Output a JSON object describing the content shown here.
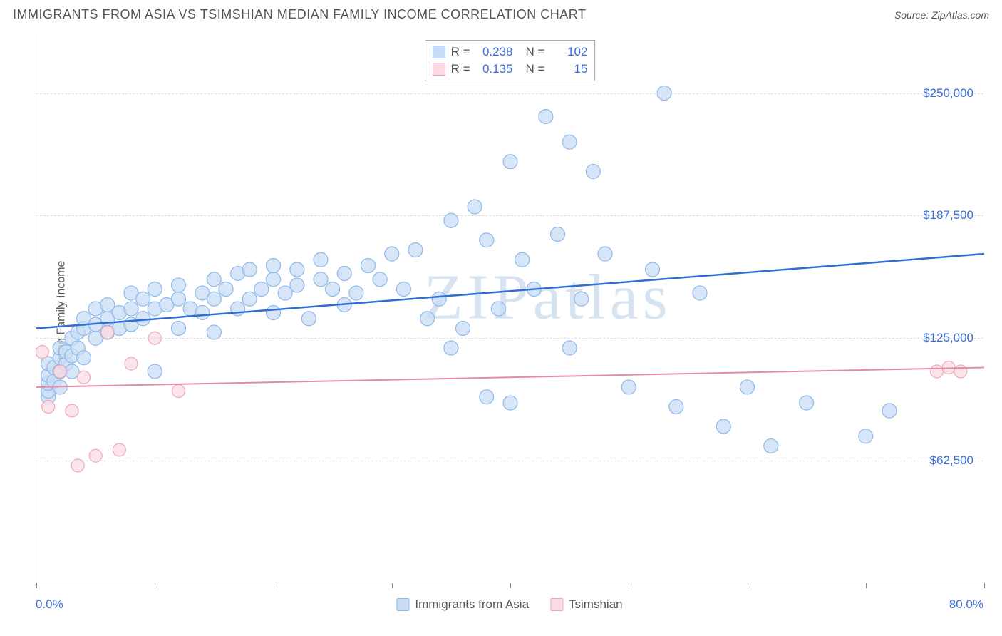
{
  "header": {
    "title": "IMMIGRANTS FROM ASIA VS TSIMSHIAN MEDIAN FAMILY INCOME CORRELATION CHART",
    "source_prefix": "Source: ",
    "source": "ZipAtlas.com"
  },
  "chart": {
    "type": "scatter",
    "ylabel": "Median Family Income",
    "watermark": "ZIPatlas",
    "xlim": [
      0,
      80
    ],
    "ylim": [
      0,
      280000
    ],
    "xaxis": {
      "min_label": "0.0%",
      "max_label": "80.0%",
      "tick_positions_pct": [
        0,
        12.5,
        25,
        37.5,
        50,
        62.5,
        75,
        87.5,
        100
      ]
    },
    "yaxis": {
      "gridlines": [
        {
          "value": 62500,
          "label": "$62,500"
        },
        {
          "value": 125000,
          "label": "$125,000"
        },
        {
          "value": 187500,
          "label": "$187,500"
        },
        {
          "value": 250000,
          "label": "$250,000"
        }
      ]
    },
    "background_color": "#ffffff",
    "grid_color": "#dddddd",
    "axis_color": "#888888",
    "label_color": "#555555",
    "tick_label_color": "#3a6fd8",
    "series": [
      {
        "name": "Immigrants from Asia",
        "color_fill": "#c8ddf5",
        "color_stroke": "#8fb9e8",
        "line_color": "#2e6fd6",
        "line_width": 2.5,
        "marker_radius": 10,
        "stats": {
          "R": "0.238",
          "N": "102"
        },
        "trend": {
          "x1": 0,
          "y1": 130000,
          "x2": 80,
          "y2": 168000
        },
        "points": [
          [
            1,
            95000
          ],
          [
            1,
            98000
          ],
          [
            1,
            102000
          ],
          [
            1,
            106000
          ],
          [
            1,
            112000
          ],
          [
            1.5,
            103000
          ],
          [
            1.5,
            110000
          ],
          [
            2,
            100000
          ],
          [
            2,
            108000
          ],
          [
            2,
            115000
          ],
          [
            2,
            120000
          ],
          [
            2.5,
            112000
          ],
          [
            2.5,
            118000
          ],
          [
            3,
            108000
          ],
          [
            3,
            116000
          ],
          [
            3,
            125000
          ],
          [
            3.5,
            120000
          ],
          [
            3.5,
            128000
          ],
          [
            4,
            115000
          ],
          [
            4,
            130000
          ],
          [
            4,
            135000
          ],
          [
            5,
            125000
          ],
          [
            5,
            132000
          ],
          [
            5,
            140000
          ],
          [
            6,
            128000
          ],
          [
            6,
            135000
          ],
          [
            6,
            142000
          ],
          [
            7,
            130000
          ],
          [
            7,
            138000
          ],
          [
            8,
            132000
          ],
          [
            8,
            140000
          ],
          [
            8,
            148000
          ],
          [
            9,
            135000
          ],
          [
            9,
            145000
          ],
          [
            10,
            108000
          ],
          [
            10,
            140000
          ],
          [
            10,
            150000
          ],
          [
            11,
            142000
          ],
          [
            12,
            130000
          ],
          [
            12,
            145000
          ],
          [
            12,
            152000
          ],
          [
            13,
            140000
          ],
          [
            14,
            138000
          ],
          [
            14,
            148000
          ],
          [
            15,
            128000
          ],
          [
            15,
            145000
          ],
          [
            15,
            155000
          ],
          [
            16,
            150000
          ],
          [
            17,
            140000
          ],
          [
            17,
            158000
          ],
          [
            18,
            145000
          ],
          [
            18,
            160000
          ],
          [
            19,
            150000
          ],
          [
            20,
            138000
          ],
          [
            20,
            155000
          ],
          [
            20,
            162000
          ],
          [
            21,
            148000
          ],
          [
            22,
            152000
          ],
          [
            22,
            160000
          ],
          [
            23,
            135000
          ],
          [
            24,
            155000
          ],
          [
            24,
            165000
          ],
          [
            25,
            150000
          ],
          [
            26,
            142000
          ],
          [
            26,
            158000
          ],
          [
            27,
            148000
          ],
          [
            28,
            162000
          ],
          [
            29,
            155000
          ],
          [
            30,
            168000
          ],
          [
            31,
            150000
          ],
          [
            32,
            170000
          ],
          [
            33,
            135000
          ],
          [
            34,
            145000
          ],
          [
            35,
            120000
          ],
          [
            35,
            185000
          ],
          [
            36,
            130000
          ],
          [
            37,
            192000
          ],
          [
            38,
            95000
          ],
          [
            38,
            175000
          ],
          [
            39,
            140000
          ],
          [
            40,
            92000
          ],
          [
            40,
            215000
          ],
          [
            41,
            165000
          ],
          [
            42,
            150000
          ],
          [
            43,
            238000
          ],
          [
            44,
            178000
          ],
          [
            45,
            120000
          ],
          [
            45,
            225000
          ],
          [
            46,
            145000
          ],
          [
            47,
            210000
          ],
          [
            48,
            168000
          ],
          [
            50,
            100000
          ],
          [
            52,
            160000
          ],
          [
            53,
            250000
          ],
          [
            54,
            90000
          ],
          [
            56,
            148000
          ],
          [
            58,
            80000
          ],
          [
            60,
            100000
          ],
          [
            62,
            70000
          ],
          [
            65,
            92000
          ],
          [
            70,
            75000
          ],
          [
            72,
            88000
          ]
        ]
      },
      {
        "name": "Tsimshian",
        "color_fill": "#fadbe3",
        "color_stroke": "#efa7ba",
        "line_color": "#e68aa4",
        "line_width": 2,
        "marker_radius": 9,
        "stats": {
          "R": "0.135",
          "N": "15"
        },
        "trend": {
          "x1": 0,
          "y1": 100000,
          "x2": 80,
          "y2": 110000
        },
        "points": [
          [
            0.5,
            118000
          ],
          [
            1,
            90000
          ],
          [
            2,
            108000
          ],
          [
            3,
            88000
          ],
          [
            3.5,
            60000
          ],
          [
            4,
            105000
          ],
          [
            5,
            65000
          ],
          [
            6,
            128000
          ],
          [
            7,
            68000
          ],
          [
            8,
            112000
          ],
          [
            10,
            125000
          ],
          [
            12,
            98000
          ],
          [
            76,
            108000
          ],
          [
            77,
            110000
          ],
          [
            78,
            108000
          ]
        ]
      }
    ],
    "bottom_legend": [
      {
        "label": "Immigrants from Asia",
        "fill": "#c8ddf5",
        "stroke": "#8fb9e8"
      },
      {
        "label": "Tsimshian",
        "fill": "#fadbe3",
        "stroke": "#efa7ba"
      }
    ],
    "stats_legend": {
      "R_label": "R =",
      "N_label": "N ="
    }
  }
}
